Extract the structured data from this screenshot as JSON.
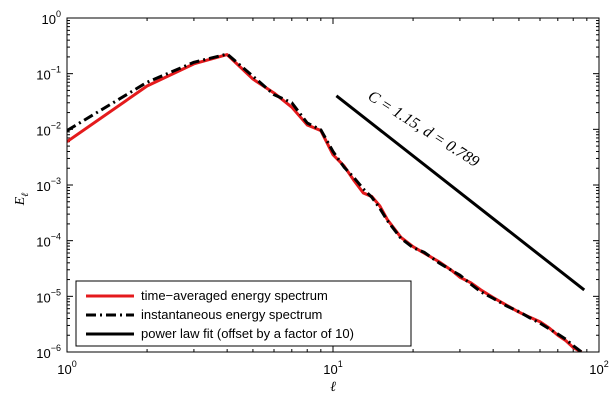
{
  "chart_data": {
    "type": "line",
    "xscale": "log",
    "yscale": "log",
    "xlim": [
      1,
      100
    ],
    "ylim": [
      1e-06,
      1
    ],
    "xlabel": "ℓ",
    "ylabel": "E",
    "ylabel_subscript": "ℓ",
    "x_ticks": [
      {
        "value": 1,
        "base": "10",
        "exp": "0"
      },
      {
        "value": 10,
        "base": "10",
        "exp": "1"
      },
      {
        "value": 100,
        "base": "10",
        "exp": "2"
      }
    ],
    "y_ticks": [
      {
        "value": 1,
        "base": "10",
        "exp": "0"
      },
      {
        "value": 0.1,
        "base": "10",
        "exp": "−1"
      },
      {
        "value": 0.01,
        "base": "10",
        "exp": "−2"
      },
      {
        "value": 0.001,
        "base": "10",
        "exp": "−3"
      },
      {
        "value": 0.0001,
        "base": "10",
        "exp": "−4"
      },
      {
        "value": 1e-05,
        "base": "10",
        "exp": "−5"
      },
      {
        "value": 1e-06,
        "base": "10",
        "exp": "−6"
      }
    ],
    "legend_position": "bottom-left",
    "annotation": {
      "text": "C = 1.15, d = 0.789",
      "x": 16,
      "y": 0.01
    },
    "series": [
      {
        "name": "time−averaged energy spectrum",
        "color": "#e41a1c",
        "style": "solid",
        "points": [
          [
            1,
            0.006
          ],
          [
            2,
            0.06
          ],
          [
            3,
            0.15
          ],
          [
            4,
            0.22
          ],
          [
            5,
            0.08
          ],
          [
            6,
            0.045
          ],
          [
            7,
            0.025
          ],
          [
            8,
            0.012
          ],
          [
            9,
            0.0095
          ],
          [
            10,
            0.0035
          ],
          [
            11,
            0.0022
          ],
          [
            12,
            0.0012
          ],
          [
            13,
            0.00072
          ],
          [
            14,
            0.00062
          ],
          [
            15,
            0.00042
          ],
          [
            16,
            0.00024
          ],
          [
            18,
            0.000115
          ],
          [
            20,
            7.8e-05
          ],
          [
            22,
            6e-05
          ],
          [
            25,
            4.2e-05
          ],
          [
            28,
            2.9e-05
          ],
          [
            30,
            2.2e-05
          ],
          [
            33,
            1.75e-05
          ],
          [
            36,
            1.3e-05
          ],
          [
            40,
            9.5e-06
          ],
          [
            45,
            6.9e-06
          ],
          [
            50,
            5.2e-06
          ],
          [
            55,
            4.2e-06
          ],
          [
            60,
            3.5e-06
          ],
          [
            65,
            2.7e-06
          ],
          [
            70,
            2e-06
          ],
          [
            75,
            1.6e-06
          ],
          [
            80,
            1.2e-06
          ],
          [
            86,
            1e-06
          ]
        ]
      },
      {
        "name": "instantaneous energy spectrum",
        "color": "#000000",
        "style": "dashdot",
        "points": [
          [
            1,
            0.0095
          ],
          [
            2,
            0.07
          ],
          [
            3,
            0.16
          ],
          [
            4,
            0.225
          ],
          [
            5,
            0.09
          ],
          [
            6,
            0.042
          ],
          [
            7,
            0.03
          ],
          [
            8,
            0.013
          ],
          [
            9,
            0.0098
          ],
          [
            10,
            0.004
          ],
          [
            11,
            0.0021
          ],
          [
            12,
            0.00135
          ],
          [
            13,
            0.00085
          ],
          [
            14,
            0.0006
          ],
          [
            15,
            0.00038
          ],
          [
            16,
            0.00023
          ],
          [
            18,
            0.00011
          ],
          [
            20,
            7.5e-05
          ],
          [
            22,
            6.2e-05
          ],
          [
            25,
            4e-05
          ],
          [
            28,
            2.9e-05
          ],
          [
            30,
            2.4e-05
          ],
          [
            33,
            1.65e-05
          ],
          [
            36,
            1.2e-05
          ],
          [
            40,
            9.2e-06
          ],
          [
            45,
            6.7e-06
          ],
          [
            50,
            5.3e-06
          ],
          [
            55,
            4.1e-06
          ],
          [
            60,
            3.3e-06
          ],
          [
            65,
            2.6e-06
          ],
          [
            70,
            2.1e-06
          ],
          [
            75,
            1.7e-06
          ],
          [
            80,
            1.3e-06
          ],
          [
            86,
            1e-06
          ]
        ]
      },
      {
        "name": "power law fit (offset by a factor of 10)",
        "color": "#000000",
        "style": "solid",
        "points": [
          [
            10.3,
            0.04
          ],
          [
            88,
            1.3e-05
          ]
        ]
      }
    ]
  }
}
